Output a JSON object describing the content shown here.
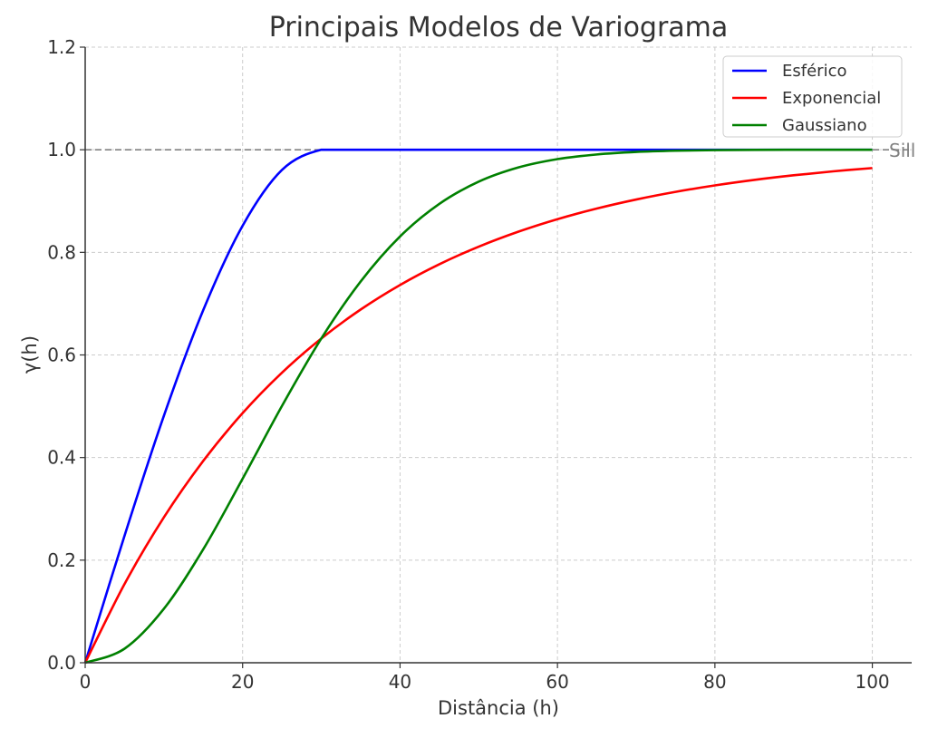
{
  "chart_data": {
    "type": "line",
    "title": "Principais Modelos de Variograma",
    "xlabel": "Distância (h)",
    "ylabel": "γ(h)",
    "xlim": [
      0,
      105
    ],
    "ylim": [
      0,
      1.2
    ],
    "xticks": [
      "0",
      "20",
      "40",
      "60",
      "80",
      "100"
    ],
    "yticks": [
      "0.0",
      "0.2",
      "0.4",
      "0.6",
      "0.8",
      "1.0",
      "1.2"
    ],
    "grid": true,
    "legend_position": "top-right",
    "x": [
      0,
      5,
      10,
      15,
      20,
      25,
      30,
      35,
      40,
      45,
      50,
      55,
      60,
      65,
      70,
      75,
      80,
      85,
      90,
      95,
      100
    ],
    "series": [
      {
        "name": "Esférico",
        "color": "#0000ff",
        "values": [
          0,
          0.2477,
          0.4815,
          0.6875,
          0.8519,
          0.9606,
          1,
          1,
          1,
          1,
          1,
          1,
          1,
          1,
          1,
          1,
          1,
          1,
          1,
          1,
          1
        ]
      },
      {
        "name": "Exponencial",
        "color": "#ff0000",
        "values": [
          0,
          0.1535,
          0.2835,
          0.3935,
          0.4866,
          0.5654,
          0.6321,
          0.6886,
          0.7364,
          0.7769,
          0.8111,
          0.8401,
          0.8647,
          0.8854,
          0.903,
          0.9179,
          0.9305,
          0.9412,
          0.9502,
          0.9579,
          0.9643
        ]
      },
      {
        "name": "Gaussiano",
        "color": "#008000",
        "values": [
          0,
          0.0274,
          0.1052,
          0.2212,
          0.3588,
          0.5006,
          0.6321,
          0.7433,
          0.831,
          0.8946,
          0.9378,
          0.9653,
          0.9817,
          0.9908,
          0.9957,
          0.9981,
          0.9992,
          0.9997,
          0.9999,
          1,
          1
        ]
      }
    ],
    "reference_line": {
      "y": 1.0,
      "label": "Sill",
      "color": "#808080"
    }
  }
}
